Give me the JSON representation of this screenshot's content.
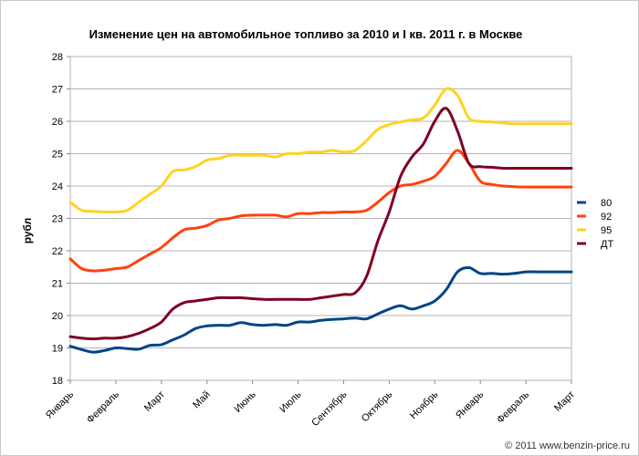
{
  "chart_data": {
    "type": "line",
    "title": "Изменение цен на автомобильное топливо за 2010 и I кв. 2011 г. в Москве",
    "ylabel": "рубл",
    "xlabel": "",
    "ylim": [
      18,
      28
    ],
    "yticks": [
      18,
      19,
      20,
      21,
      22,
      23,
      24,
      25,
      26,
      27,
      28
    ],
    "x_tick_labels": [
      "Январь",
      "Февраль",
      "Март",
      "Май",
      "Июнь",
      "Июль",
      "Сентябрь",
      "Октябрь",
      "Ноябрь",
      "Январь",
      "Февраль",
      "Март"
    ],
    "grid": "horizontal",
    "legend_placement": "right",
    "x": [
      0,
      0.25,
      0.5,
      0.75,
      1,
      1.25,
      1.5,
      1.75,
      2,
      2.25,
      2.5,
      2.75,
      3,
      3.25,
      3.5,
      3.75,
      4,
      4.25,
      4.5,
      4.75,
      5,
      5.25,
      5.5,
      5.75,
      6,
      6.25,
      6.5,
      6.75,
      7,
      7.25,
      7.5,
      7.75,
      8,
      8.25,
      8.5,
      8.75,
      9,
      9.25,
      9.5,
      9.75,
      10,
      10.25,
      10.5,
      10.75,
      11
    ],
    "series": [
      {
        "name": "80",
        "color": "#004586",
        "values": [
          19.05,
          18.95,
          18.87,
          18.92,
          19.0,
          18.98,
          18.96,
          19.08,
          19.1,
          19.25,
          19.4,
          19.6,
          19.68,
          19.7,
          19.7,
          19.78,
          19.72,
          19.7,
          19.72,
          19.7,
          19.8,
          19.8,
          19.85,
          19.88,
          19.9,
          19.92,
          19.9,
          20.05,
          20.2,
          20.3,
          20.2,
          20.3,
          20.45,
          20.8,
          21.35,
          21.48,
          21.3,
          21.3,
          21.28,
          21.3,
          21.35,
          21.35,
          21.35,
          21.35,
          21.35
        ]
      },
      {
        "name": "92",
        "color": "#ff420e",
        "values": [
          21.75,
          21.45,
          21.38,
          21.4,
          21.45,
          21.5,
          21.7,
          21.9,
          22.1,
          22.4,
          22.65,
          22.7,
          22.78,
          22.95,
          23.0,
          23.08,
          23.1,
          23.1,
          23.1,
          23.05,
          23.15,
          23.15,
          23.18,
          23.18,
          23.2,
          23.2,
          23.25,
          23.5,
          23.8,
          24.0,
          24.05,
          24.15,
          24.3,
          24.7,
          25.1,
          24.7,
          24.15,
          24.05,
          24.0,
          23.98,
          23.97,
          23.97,
          23.97,
          23.97,
          23.97
        ]
      },
      {
        "name": "95",
        "color": "#ffd320",
        "values": [
          23.5,
          23.25,
          23.22,
          23.2,
          23.2,
          23.25,
          23.5,
          23.75,
          24.0,
          24.45,
          24.5,
          24.6,
          24.8,
          24.85,
          24.95,
          24.95,
          24.95,
          24.95,
          24.9,
          25.0,
          25.0,
          25.05,
          25.05,
          25.1,
          25.05,
          25.1,
          25.4,
          25.75,
          25.9,
          25.98,
          26.05,
          26.1,
          26.5,
          27.0,
          26.8,
          26.1,
          26.0,
          25.98,
          25.95,
          25.92,
          25.92,
          25.92,
          25.92,
          25.92,
          25.92
        ]
      },
      {
        "name": "ДТ",
        "color": "#7e0021",
        "values": [
          19.35,
          19.3,
          19.28,
          19.3,
          19.3,
          19.35,
          19.45,
          19.6,
          19.8,
          20.2,
          20.4,
          20.45,
          20.5,
          20.55,
          20.55,
          20.55,
          20.52,
          20.5,
          20.5,
          20.5,
          20.5,
          20.5,
          20.55,
          20.6,
          20.65,
          20.7,
          21.2,
          22.3,
          23.2,
          24.3,
          24.9,
          25.3,
          26.0,
          26.4,
          25.7,
          24.7,
          24.6,
          24.58,
          24.55,
          24.55,
          24.55,
          24.55,
          24.55,
          24.55,
          24.55
        ]
      }
    ]
  },
  "footer": "© 2011 www.benzin-price.ru"
}
